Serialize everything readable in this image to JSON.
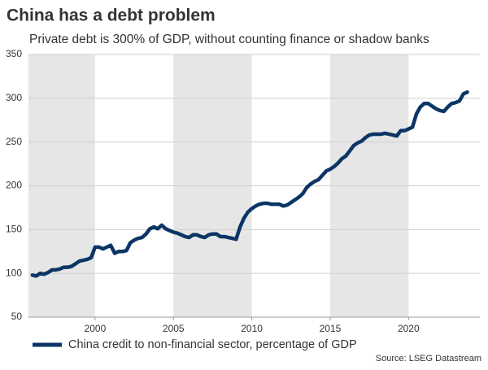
{
  "chart_data": {
    "type": "line",
    "title": "China has a debt problem",
    "subtitle": "Private debt is 300% of GDP, without counting finance or shadow banks",
    "source": "Source: LSEG Datastream",
    "x": [
      1996.0,
      1996.25,
      1996.5,
      1996.75,
      1997.0,
      1997.25,
      1997.5,
      1997.75,
      1998.0,
      1998.25,
      1998.5,
      1998.75,
      1999.0,
      1999.25,
      1999.5,
      1999.75,
      2000.0,
      2000.25,
      2000.5,
      2000.75,
      2001.0,
      2001.25,
      2001.5,
      2001.75,
      2002.0,
      2002.25,
      2002.5,
      2002.75,
      2003.0,
      2003.25,
      2003.5,
      2003.75,
      2004.0,
      2004.25,
      2004.5,
      2004.75,
      2005.0,
      2005.25,
      2005.5,
      2005.75,
      2006.0,
      2006.25,
      2006.5,
      2006.75,
      2007.0,
      2007.25,
      2007.5,
      2007.75,
      2008.0,
      2008.25,
      2008.5,
      2008.75,
      2009.0,
      2009.25,
      2009.5,
      2009.75,
      2010.0,
      2010.25,
      2010.5,
      2010.75,
      2011.0,
      2011.25,
      2011.5,
      2011.75,
      2012.0,
      2012.25,
      2012.5,
      2012.75,
      2013.0,
      2013.25,
      2013.5,
      2013.75,
      2014.0,
      2014.25,
      2014.5,
      2014.75,
      2015.0,
      2015.25,
      2015.5,
      2015.75,
      2016.0,
      2016.25,
      2016.5,
      2016.75,
      2017.0,
      2017.25,
      2017.5,
      2017.75,
      2018.0,
      2018.25,
      2018.5,
      2018.75,
      2019.0,
      2019.25,
      2019.5,
      2019.75,
      2020.0,
      2020.25,
      2020.5,
      2020.75,
      2021.0,
      2021.25,
      2021.5,
      2021.75,
      2022.0,
      2022.25,
      2022.5,
      2022.75,
      2023.0,
      2023.25,
      2023.5,
      2023.75
    ],
    "series": [
      {
        "name": "China credit to non-financial sector, percentage of GDP",
        "color": "#0b3565",
        "values": [
          98,
          97,
          100,
          99,
          101,
          104,
          104,
          105,
          107,
          107,
          108,
          111,
          114,
          115,
          116,
          118,
          130,
          130,
          128,
          130,
          132,
          123,
          125,
          125,
          126,
          135,
          138,
          140,
          141,
          145,
          151,
          153,
          151,
          155,
          151,
          149,
          147,
          146,
          144,
          142,
          141,
          144,
          144,
          142,
          141,
          144,
          145,
          145,
          142,
          142,
          141,
          140,
          139,
          153,
          163,
          170,
          174,
          177,
          179,
          180,
          180,
          179,
          179,
          179,
          177,
          178,
          181,
          184,
          187,
          191,
          198,
          202,
          205,
          207,
          212,
          217,
          219,
          222,
          226,
          231,
          234,
          240,
          246,
          249,
          251,
          255,
          258,
          259,
          259,
          259,
          260,
          259,
          258,
          257,
          263,
          263,
          265,
          267,
          282,
          290,
          294,
          294,
          291,
          288,
          286,
          285,
          290,
          294,
          295,
          297,
          305,
          307
        ]
      }
    ],
    "xlim": [
      1995.75,
      2024.55
    ],
    "xticks": [
      2000,
      2005,
      2010,
      2015,
      2020
    ],
    "ylim": [
      50,
      350
    ],
    "yticks": [
      50,
      100,
      150,
      200,
      250,
      300,
      350
    ],
    "grid": true,
    "shaded_alternate_intervals": true,
    "legend": "bottom"
  }
}
